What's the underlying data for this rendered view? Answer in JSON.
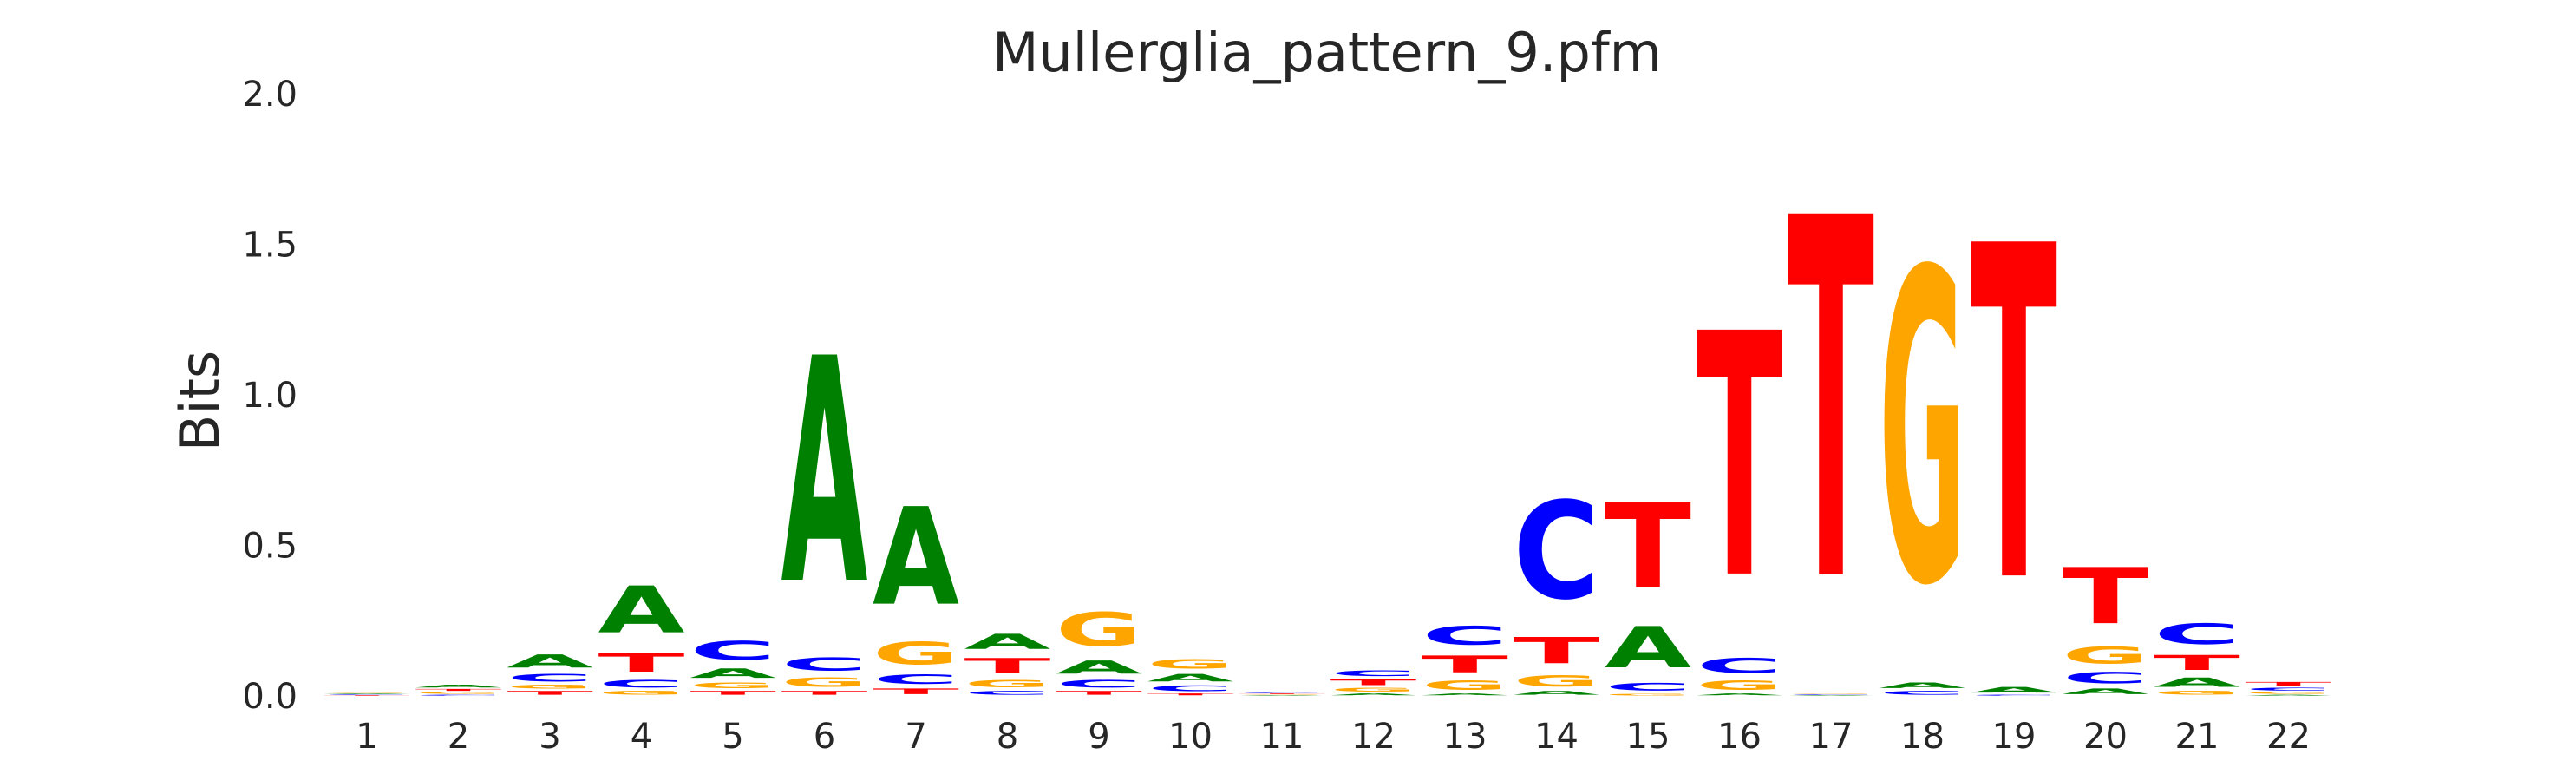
{
  "chart_data": {
    "type": "sequence-logo",
    "title": "Mullerglia_pattern_9.pfm",
    "ylabel": "Bits",
    "ylim": [
      0,
      2.0
    ],
    "yticks": [
      "0.0",
      "0.5",
      "1.0",
      "1.5",
      "2.0"
    ],
    "positions": [
      "1",
      "2",
      "3",
      "4",
      "5",
      "6",
      "7",
      "8",
      "9",
      "10",
      "11",
      "12",
      "13",
      "14",
      "15",
      "16",
      "17",
      "18",
      "19",
      "20",
      "21",
      "22"
    ],
    "colors": {
      "A": "#008000",
      "C": "#0000ff",
      "G": "#ffa500",
      "T": "#ff0000"
    },
    "columns": [
      [
        {
          "base": "T",
          "bits": 0.003
        },
        {
          "base": "C",
          "bits": 0.003
        },
        {
          "base": "A",
          "bits": 0.003
        },
        {
          "base": "G",
          "bits": 0.003
        }
      ],
      [
        {
          "base": "C",
          "bits": 0.005
        },
        {
          "base": "G",
          "bits": 0.01
        },
        {
          "base": "T",
          "bits": 0.01
        },
        {
          "base": "A",
          "bits": 0.015
        }
      ],
      [
        {
          "base": "T",
          "bits": 0.02
        },
        {
          "base": "G",
          "bits": 0.02
        },
        {
          "base": "C",
          "bits": 0.04
        },
        {
          "base": "A",
          "bits": 0.07
        }
      ],
      [
        {
          "base": "G",
          "bits": 0.02
        },
        {
          "base": "C",
          "bits": 0.04
        },
        {
          "base": "T",
          "bits": 0.1
        },
        {
          "base": "A",
          "bits": 0.25
        }
      ],
      [
        {
          "base": "T",
          "bits": 0.02
        },
        {
          "base": "G",
          "bits": 0.03
        },
        {
          "base": "A",
          "bits": 0.05
        },
        {
          "base": "C",
          "bits": 0.1
        }
      ],
      [
        {
          "base": "T",
          "bits": 0.02
        },
        {
          "base": "G",
          "bits": 0.05
        },
        {
          "base": "C",
          "bits": 0.07
        },
        {
          "base": "A",
          "bits": 1.2
        }
      ],
      [
        {
          "base": "T",
          "bits": 0.03
        },
        {
          "base": "C",
          "bits": 0.05
        },
        {
          "base": "G",
          "bits": 0.12
        },
        {
          "base": "A",
          "bits": 0.52
        }
      ],
      [
        {
          "base": "C",
          "bits": 0.02
        },
        {
          "base": "G",
          "bits": 0.04
        },
        {
          "base": "T",
          "bits": 0.08
        },
        {
          "base": "A",
          "bits": 0.08
        }
      ],
      [
        {
          "base": "T",
          "bits": 0.02
        },
        {
          "base": "C",
          "bits": 0.04
        },
        {
          "base": "A",
          "bits": 0.07
        },
        {
          "base": "G",
          "bits": 0.18
        }
      ],
      [
        {
          "base": "T",
          "bits": 0.01
        },
        {
          "base": "C",
          "bits": 0.03
        },
        {
          "base": "A",
          "bits": 0.04
        },
        {
          "base": "G",
          "bits": 0.05
        }
      ],
      [
        {
          "base": "A",
          "bits": 0.003
        },
        {
          "base": "G",
          "bits": 0.003
        },
        {
          "base": "T",
          "bits": 0.003
        },
        {
          "base": "C",
          "bits": 0.004
        }
      ],
      [
        {
          "base": "A",
          "bits": 0.01
        },
        {
          "base": "G",
          "bits": 0.02
        },
        {
          "base": "T",
          "bits": 0.03
        },
        {
          "base": "C",
          "bits": 0.03
        }
      ],
      [
        {
          "base": "A",
          "bits": 0.01
        },
        {
          "base": "G",
          "bits": 0.05
        },
        {
          "base": "T",
          "bits": 0.09
        },
        {
          "base": "C",
          "bits": 0.1
        }
      ],
      [
        {
          "base": "A",
          "bits": 0.02
        },
        {
          "base": "G",
          "bits": 0.06
        },
        {
          "base": "T",
          "bits": 0.14
        },
        {
          "base": "C",
          "bits": 0.52
        }
      ],
      [
        {
          "base": "G",
          "bits": 0.01
        },
        {
          "base": "C",
          "bits": 0.04
        },
        {
          "base": "A",
          "bits": 0.22
        },
        {
          "base": "T",
          "bits": 0.45
        }
      ],
      [
        {
          "base": "A",
          "bits": 0.01
        },
        {
          "base": "G",
          "bits": 0.05
        },
        {
          "base": "C",
          "bits": 0.08
        },
        {
          "base": "T",
          "bits": 1.3
        }
      ],
      [
        {
          "base": "A",
          "bits": 0.003
        },
        {
          "base": "C",
          "bits": 0.003
        },
        {
          "base": "G",
          "bits": 0.004
        },
        {
          "base": "T",
          "bits": 1.92
        }
      ],
      [
        {
          "base": "C",
          "bits": 0.02
        },
        {
          "base": "A",
          "bits": 0.03
        },
        {
          "base": "G",
          "bits": 1.66
        }
      ],
      [
        {
          "base": "C",
          "bits": 0.005
        },
        {
          "base": "A",
          "bits": 0.03
        },
        {
          "base": "T",
          "bits": 1.78
        }
      ],
      [
        {
          "base": "A",
          "bits": 0.03
        },
        {
          "base": "C",
          "bits": 0.06
        },
        {
          "base": "G",
          "bits": 0.09
        },
        {
          "base": "T",
          "bits": 0.3
        }
      ],
      [
        {
          "base": "G",
          "bits": 0.02
        },
        {
          "base": "A",
          "bits": 0.05
        },
        {
          "base": "T",
          "bits": 0.08
        },
        {
          "base": "C",
          "bits": 0.11
        }
      ],
      [
        {
          "base": "A",
          "bits": 0.005
        },
        {
          "base": "G",
          "bits": 0.01
        },
        {
          "base": "C",
          "bits": 0.015
        },
        {
          "base": "T",
          "bits": 0.02
        }
      ]
    ]
  }
}
